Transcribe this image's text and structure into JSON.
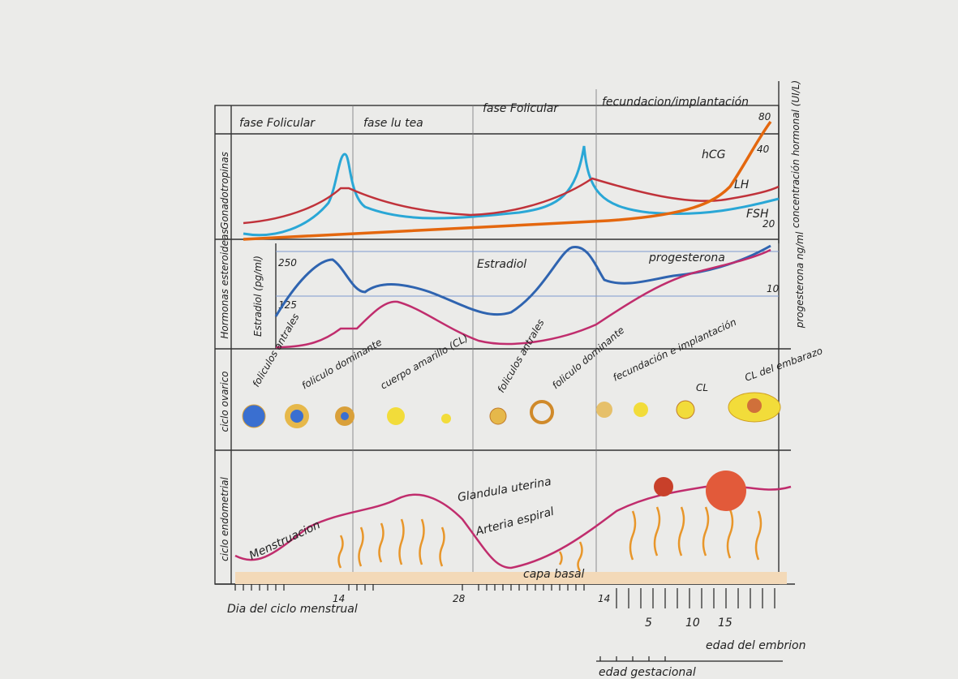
{
  "header": {
    "phases": [
      "fase Folicular",
      "fase lu tea",
      "fase Folicular",
      "fecundacion/implantación"
    ]
  },
  "rows": {
    "gonadotropins": "Gonadotropinas",
    "steroids": "Hormonas esteroideas",
    "ovarian": "ciclo ovarico",
    "endometrial": "ciclo endometrial"
  },
  "axes": {
    "right_title": "concentración hormonal (UI/L)",
    "right_ticks": [
      80,
      40,
      20
    ],
    "progesterone_title": "progesterona ng/ml",
    "progesterone_tick": 10,
    "estradiol_title": "Estradiol (pg/ml)",
    "estradiol_ticks": [
      250,
      125
    ]
  },
  "curves": {
    "hcg": "hCG",
    "lh": "LH",
    "fsh": "FSH",
    "estradiol": "Estradiol",
    "progesterone": "progesterona"
  },
  "ovary": [
    "foliculos antrales",
    "foliculo dominante",
    "cuerpo amarillo (CL)",
    "foliculos antrales",
    "foliculo dominante",
    "fecundación e implantación",
    "CL",
    "CL del embarazo"
  ],
  "endometrium": {
    "menstruation": "Menstruacion",
    "gland": "Glandula uterina",
    "artery": "Arteria espiral",
    "basal": "capa basal"
  },
  "bottom": {
    "day_title": "Dia del ciclo menstrual",
    "day_ticks": [
      14,
      28,
      14
    ],
    "embryo_ticks": [
      5,
      10,
      15
    ],
    "embryo_title": "edad del embrion",
    "gestational_title": "edad gestacional"
  }
}
